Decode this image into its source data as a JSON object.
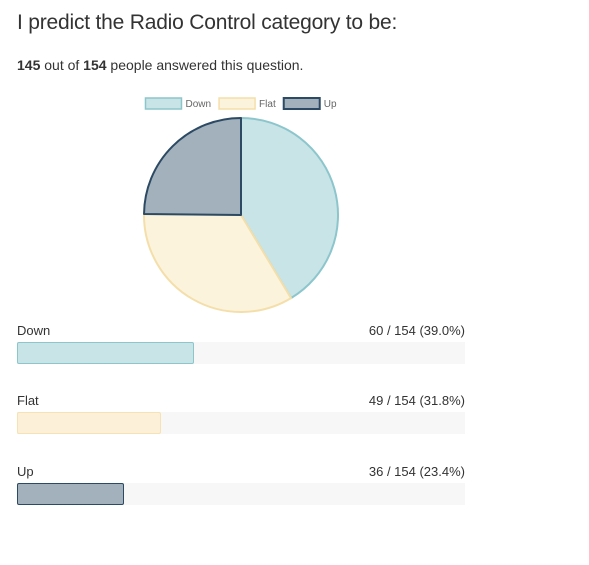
{
  "question": {
    "title": "I predict the Radio Control category to be:",
    "answered_count": "145",
    "between_text": " out of ",
    "total_count": "154",
    "suffix_text": " people answered this question."
  },
  "chart_data": {
    "type": "pie",
    "series": [
      {
        "name": "Down",
        "value": 60,
        "fill": "#c8e4e7",
        "stroke": "#8cc6cc"
      },
      {
        "name": "Flat",
        "value": 49,
        "fill": "#fcf3dc",
        "stroke": "#f4dfaa"
      },
      {
        "name": "Up",
        "value": 36,
        "fill": "#a2b1bb",
        "stroke": "#2c4a63"
      }
    ],
    "legend_position": "top"
  },
  "results": [
    {
      "label": "Down",
      "count_text": "60 / 154 (39.0%)",
      "fraction": 0.39,
      "fill": "#c8e4e7",
      "stroke": "#8cc6cc"
    },
    {
      "label": "Flat",
      "count_text": "49 / 154 (31.8%)",
      "fraction": 0.318,
      "fill": "#fcf0d9",
      "stroke": "#f6e2b5"
    },
    {
      "label": "Up",
      "count_text": "36 / 154 (23.4%)",
      "fraction": 0.234,
      "fill": "#a2b1bb",
      "stroke": "#2c4a63"
    }
  ]
}
